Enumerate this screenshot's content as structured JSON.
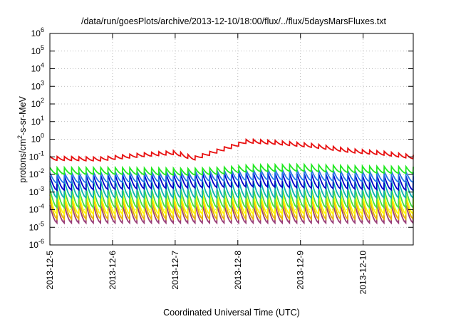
{
  "chart_data": {
    "type": "line",
    "title": "/data/run/goesPlots/archive/2013-12-10/18:00/flux/../flux/5daysMarsFluxes.txt",
    "xlabel": "Coordinated Universal Time (UTC)",
    "ylabel": {
      "pre": "protons/cm",
      "sup": "2",
      "post": "-s-sr-MeV"
    },
    "x_ticks": [
      "2013-12-5",
      "2013-12-6",
      "2013-12-7",
      "2013-12-8",
      "2013-12-9",
      "2013-12-10"
    ],
    "xlim_days": [
      0,
      5.8
    ],
    "yscale": "log",
    "ylim_exp": [
      -6,
      6
    ],
    "y_ticks": [
      {
        "base": "10",
        "exp": "-6"
      },
      {
        "base": "10",
        "exp": "-5"
      },
      {
        "base": "10",
        "exp": "-4"
      },
      {
        "base": "10",
        "exp": "-3"
      },
      {
        "base": "10",
        "exp": "-2"
      },
      {
        "base": "10",
        "exp": "-1"
      },
      {
        "base": "10",
        "exp": "0"
      },
      {
        "base": "10",
        "exp": "1"
      },
      {
        "base": "10",
        "exp": "2"
      },
      {
        "base": "10",
        "exp": "3"
      },
      {
        "base": "10",
        "exp": "4"
      },
      {
        "base": "10",
        "exp": "5"
      },
      {
        "base": "10",
        "exp": "6"
      }
    ],
    "grid": true,
    "sawtooth_teeth": 50,
    "series": [
      {
        "color": "#e81010",
        "baseline_log": [
          [
            0,
            -1.08
          ],
          [
            0.8,
            -1.12
          ],
          [
            1.5,
            -0.88
          ],
          [
            2.0,
            -0.75
          ],
          [
            2.3,
            -1.08
          ],
          [
            3.0,
            -0.3
          ],
          [
            3.15,
            -0.1
          ],
          [
            3.6,
            -0.18
          ],
          [
            4.2,
            -0.36
          ],
          [
            4.8,
            -0.65
          ],
          [
            5.3,
            -0.78
          ],
          [
            5.8,
            -1.0
          ]
        ],
        "amp_log": 0.22
      },
      {
        "color": "#22e822",
        "baseline_log": [
          [
            0,
            -1.8
          ],
          [
            1.0,
            -1.8
          ],
          [
            2.2,
            -1.85
          ],
          [
            2.7,
            -1.8
          ],
          [
            3.2,
            -1.65
          ],
          [
            4.0,
            -1.62
          ],
          [
            5.0,
            -1.72
          ],
          [
            5.8,
            -1.75
          ]
        ],
        "amp_log": 0.38
      },
      {
        "color": "#2277e6",
        "baseline_log": [
          [
            0,
            -2.2
          ],
          [
            3.0,
            -2.05
          ],
          [
            3.4,
            -2.0
          ],
          [
            5.8,
            -2.15
          ]
        ],
        "amp_log": 0.6
      },
      {
        "color": "#0000c8",
        "baseline_log": [
          [
            0,
            -2.5
          ],
          [
            3.3,
            -2.3
          ],
          [
            5.8,
            -2.5
          ]
        ],
        "amp_log": 0.8
      },
      {
        "color": "#0ab1b1",
        "baseline_log": [
          [
            0,
            -2.85
          ],
          [
            5.8,
            -2.85
          ]
        ],
        "amp_log": 0.95
      },
      {
        "color": "#44dd44",
        "baseline_log": [
          [
            0,
            -3.35
          ],
          [
            5.8,
            -3.35
          ]
        ],
        "amp_log": 1.05
      },
      {
        "color": "#ffff00",
        "baseline_log": [
          [
            0,
            -3.7
          ],
          [
            5.8,
            -3.7
          ]
        ],
        "amp_log": 1.1
      },
      {
        "color": "#e6b400",
        "baseline_log": [
          [
            0,
            -3.95
          ],
          [
            5.8,
            -3.95
          ]
        ],
        "amp_log": 1.15
      },
      {
        "color": "#993d77",
        "baseline_log": [
          [
            0,
            -4.25
          ],
          [
            5.8,
            -4.25
          ]
        ],
        "amp_log": 1.0
      }
    ]
  }
}
